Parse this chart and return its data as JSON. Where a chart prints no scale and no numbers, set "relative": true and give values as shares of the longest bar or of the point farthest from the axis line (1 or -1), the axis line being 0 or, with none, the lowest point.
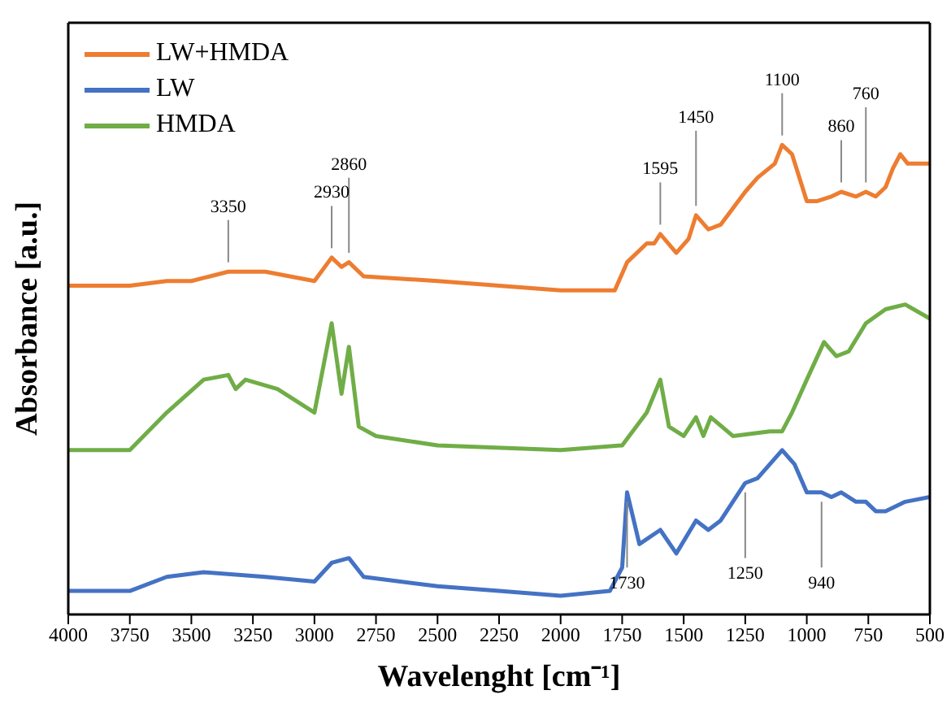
{
  "chart_data": {
    "type": "line",
    "xlabel": "Wavelenght [cm⁻¹]",
    "ylabel": "Absorbance [a.u.]",
    "relative": true,
    "xlim": [
      4000,
      500
    ],
    "xticks": [
      4000,
      3750,
      3500,
      3250,
      3000,
      2750,
      2500,
      2250,
      2000,
      1750,
      1500,
      1250,
      1000,
      750,
      500
    ],
    "legend": "top left",
    "marker": "none",
    "line_style": "solid",
    "series": [
      {
        "name": "LW+HMDA",
        "color": "#ed7d31",
        "x": [
          4000,
          3750,
          3600,
          3500,
          3350,
          3200,
          3000,
          2930,
          2890,
          2860,
          2800,
          2500,
          2250,
          2000,
          1780,
          1730,
          1650,
          1620,
          1595,
          1530,
          1480,
          1450,
          1400,
          1350,
          1250,
          1200,
          1130,
          1100,
          1060,
          1000,
          960,
          900,
          860,
          800,
          760,
          720,
          680,
          650,
          620,
          590,
          500
        ],
        "values": [
          0.7,
          0.7,
          0.71,
          0.71,
          0.73,
          0.73,
          0.71,
          0.76,
          0.74,
          0.75,
          0.72,
          0.71,
          0.7,
          0.69,
          0.69,
          0.75,
          0.79,
          0.79,
          0.81,
          0.77,
          0.8,
          0.85,
          0.82,
          0.83,
          0.9,
          0.93,
          0.96,
          1.0,
          0.98,
          0.88,
          0.88,
          0.89,
          0.9,
          0.89,
          0.9,
          0.89,
          0.91,
          0.95,
          0.98,
          0.96,
          0.96
        ]
      },
      {
        "name": "LW",
        "color": "#4472c4",
        "x": [
          4000,
          3750,
          3600,
          3450,
          3200,
          3000,
          2930,
          2860,
          2800,
          2500,
          2250,
          2000,
          1800,
          1750,
          1730,
          1680,
          1595,
          1530,
          1450,
          1400,
          1350,
          1250,
          1200,
          1100,
          1050,
          1000,
          940,
          900,
          860,
          800,
          760,
          720,
          680,
          600,
          500
        ],
        "values": [
          0.05,
          0.05,
          0.08,
          0.09,
          0.08,
          0.07,
          0.11,
          0.12,
          0.08,
          0.06,
          0.05,
          0.04,
          0.05,
          0.1,
          0.26,
          0.15,
          0.18,
          0.13,
          0.2,
          0.18,
          0.2,
          0.28,
          0.29,
          0.35,
          0.32,
          0.26,
          0.26,
          0.25,
          0.26,
          0.24,
          0.24,
          0.22,
          0.22,
          0.24,
          0.25
        ]
      },
      {
        "name": "HMDA",
        "color": "#70ad47",
        "x": [
          4000,
          3750,
          3600,
          3450,
          3350,
          3320,
          3280,
          3150,
          3000,
          2930,
          2890,
          2860,
          2820,
          2750,
          2500,
          2000,
          1750,
          1650,
          1595,
          1560,
          1500,
          1450,
          1420,
          1390,
          1300,
          1150,
          1100,
          1060,
          1000,
          930,
          880,
          830,
          760,
          680,
          600,
          500
        ],
        "values": [
          0.35,
          0.35,
          0.43,
          0.5,
          0.51,
          0.48,
          0.5,
          0.48,
          0.43,
          0.62,
          0.47,
          0.57,
          0.4,
          0.38,
          0.36,
          0.35,
          0.36,
          0.43,
          0.5,
          0.4,
          0.38,
          0.42,
          0.38,
          0.42,
          0.38,
          0.39,
          0.39,
          0.43,
          0.5,
          0.58,
          0.55,
          0.56,
          0.62,
          0.65,
          0.66,
          0.63
        ]
      }
    ],
    "annotations": [
      {
        "text": "3350",
        "x": 3350,
        "y": 0.73
      },
      {
        "text": "2930",
        "x": 2930,
        "y": 0.76
      },
      {
        "text": "2860",
        "x": 2860,
        "y": 0.75
      },
      {
        "text": "1595",
        "x": 1595,
        "y": 0.81
      },
      {
        "text": "1450",
        "x": 1450,
        "y": 0.85
      },
      {
        "text": "1100",
        "x": 1100,
        "y": 1.0
      },
      {
        "text": "860",
        "x": 860,
        "y": 0.9
      },
      {
        "text": "760",
        "x": 760,
        "y": 0.9
      },
      {
        "text": "1730",
        "x": 1730,
        "y": 0.26
      },
      {
        "text": "1250",
        "x": 1250,
        "y": 0.28
      },
      {
        "text": "940",
        "x": 940,
        "y": 0.26
      }
    ]
  }
}
